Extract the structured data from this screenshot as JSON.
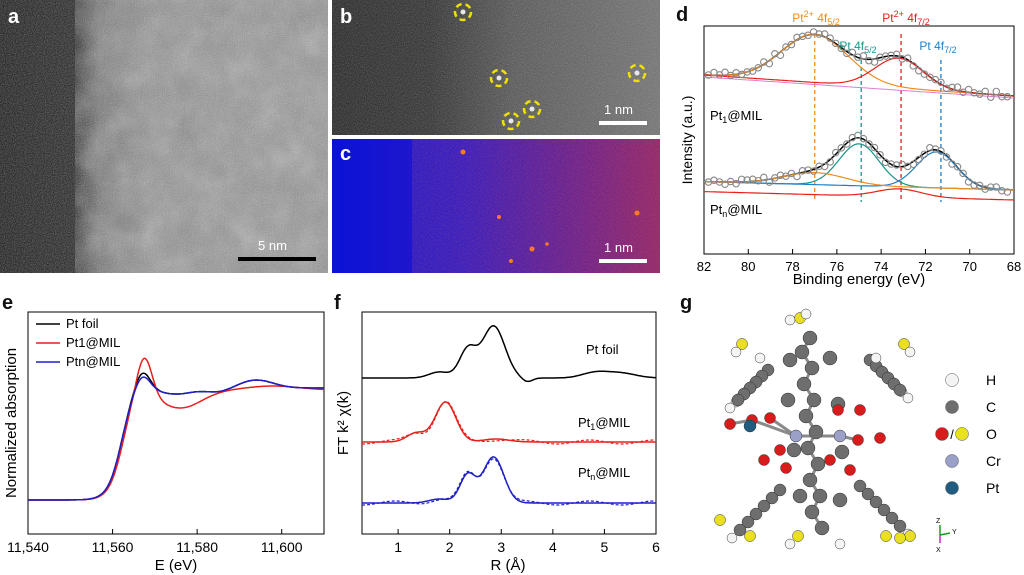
{
  "figure": {
    "panels": {
      "a": {
        "letter": "a",
        "scale_label": "5 nm"
      },
      "b": {
        "letter": "b",
        "scale_label": "1 nm"
      },
      "c": {
        "letter": "c",
        "scale_label": "1 nm"
      },
      "d": {
        "letter": "d"
      },
      "e": {
        "letter": "e"
      },
      "f": {
        "letter": "f"
      },
      "g": {
        "letter": "g"
      }
    },
    "colors": {
      "black": "#000000",
      "red": "#e8201c",
      "blue": "#1f1fc8",
      "orange": "#f08c1e",
      "teal": "#16968c",
      "xps_blue": "#1f7fc8",
      "pink": "#e07ad2"
    }
  },
  "chart_data": [
    {
      "panel": "d",
      "type": "line",
      "xlabel": "Binding energy (eV)",
      "ylabel": "Intensity (a.u.)",
      "xlim": [
        82,
        68
      ],
      "x_ticks": [
        "82",
        "80",
        "78",
        "76",
        "74",
        "72",
        "70",
        "68"
      ],
      "annotations": [
        {
          "text": "Pt",
          "sup": "2+",
          "rest": " 4f",
          "sub": "5/2",
          "color": "#f08c1e",
          "x": 77.0
        },
        {
          "text": "Pt",
          "sup": "2+",
          "rest": " 4f",
          "sub": "7/2",
          "color": "#e8201c",
          "x": 73.1
        },
        {
          "text": "Pt",
          "sup": "",
          "rest": " 4f",
          "sub": "5/2",
          "color": "#16968c",
          "x": 74.9
        },
        {
          "text": "Pt",
          "sup": "",
          "rest": " 4f",
          "sub": "7/2",
          "color": "#1f7fc8",
          "x": 71.3
        }
      ],
      "series_labels": [
        {
          "text": "Pt",
          "sub": "1",
          "rest": "@MIL"
        },
        {
          "text": "Pt",
          "sub": "n",
          "rest": "@MIL"
        }
      ]
    },
    {
      "panel": "e",
      "type": "line",
      "xlabel": "E (eV)",
      "ylabel": "Normalized absorption",
      "xlim": [
        11540,
        11610
      ],
      "x_ticks": [
        "11,540",
        "11,560",
        "11,580",
        "11,600"
      ],
      "legend_position": "top-left",
      "series": [
        {
          "name": "Pt foil",
          "color": "#000000"
        },
        {
          "name": "Pt1@MIL",
          "color": "#e8201c"
        },
        {
          "name": "Ptn@MIL",
          "color": "#1f1fc8"
        }
      ]
    },
    {
      "panel": "f",
      "type": "line",
      "xlabel": "R (Å)",
      "ylabel": "FT k² χ(k)",
      "xlim": [
        0.3,
        6
      ],
      "x_ticks": [
        "1",
        "2",
        "3",
        "4",
        "5",
        "6"
      ],
      "series": [
        {
          "name": "Pt foil",
          "color": "#000000"
        },
        {
          "name": "Pt1@MIL",
          "color": "#e8201c"
        },
        {
          "name": "Ptn@MIL",
          "color": "#1f1fc8"
        }
      ]
    }
  ],
  "legend_g": {
    "items": [
      {
        "label": "H",
        "color": "#f4f4f4"
      },
      {
        "label": "C",
        "color": "#6e6e6e"
      },
      {
        "label": "O",
        "color": "#d81c1c",
        "color2": "#e8e020",
        "slash": "/"
      },
      {
        "label": "Cr",
        "color": "#9aa0c8"
      },
      {
        "label": "Pt",
        "color": "#1f5c80"
      }
    ],
    "axes": [
      "Z",
      "Y",
      "X"
    ]
  }
}
